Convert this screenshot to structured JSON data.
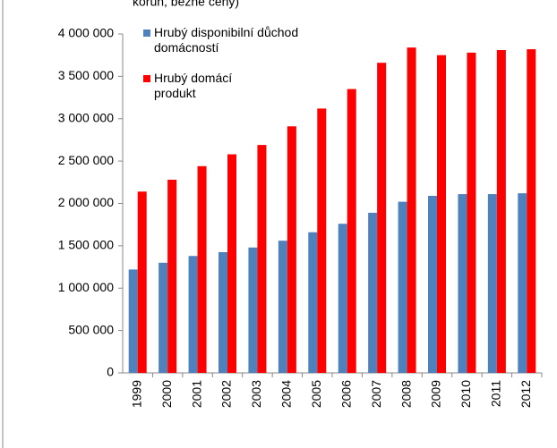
{
  "chart_data": {
    "type": "bar",
    "title": "korun, běžné ceny)",
    "categories": [
      "1999",
      "2000",
      "2001",
      "2002",
      "2003",
      "2004",
      "2005",
      "2006",
      "2007",
      "2008",
      "2009",
      "2010",
      "2011",
      "2012"
    ],
    "series": [
      {
        "name": "Hrubý disponibilní důchod domácností",
        "color": "#4f81bd",
        "values": [
          1220000,
          1300000,
          1380000,
          1425000,
          1480000,
          1560000,
          1660000,
          1760000,
          1890000,
          2020000,
          2090000,
          2110000,
          2110000,
          2120000
        ]
      },
      {
        "name": "Hrubý domácí produkt",
        "color": "#ff0000",
        "values": [
          2140000,
          2280000,
          2440000,
          2580000,
          2690000,
          2910000,
          3120000,
          3350000,
          3660000,
          3840000,
          3750000,
          3780000,
          3810000,
          3820000
        ]
      }
    ],
    "ylim": [
      0,
      4000000
    ],
    "yticks": [
      0,
      {
        "value": 500000,
        "label": "500 000"
      },
      {
        "value": 1000000,
        "label": "1 000 000"
      },
      {
        "value": 1500000,
        "label": "1 500 000"
      },
      {
        "value": 2000000,
        "label": "2 000 000"
      },
      {
        "value": 2500000,
        "label": "2 500 000"
      },
      {
        "value": 3000000,
        "label": "3 000 000"
      },
      {
        "value": 3500000,
        "label": "3 500 000"
      },
      {
        "value": 4000000,
        "label": "4 000 000"
      }
    ],
    "grid": false,
    "legend": "top-left"
  }
}
